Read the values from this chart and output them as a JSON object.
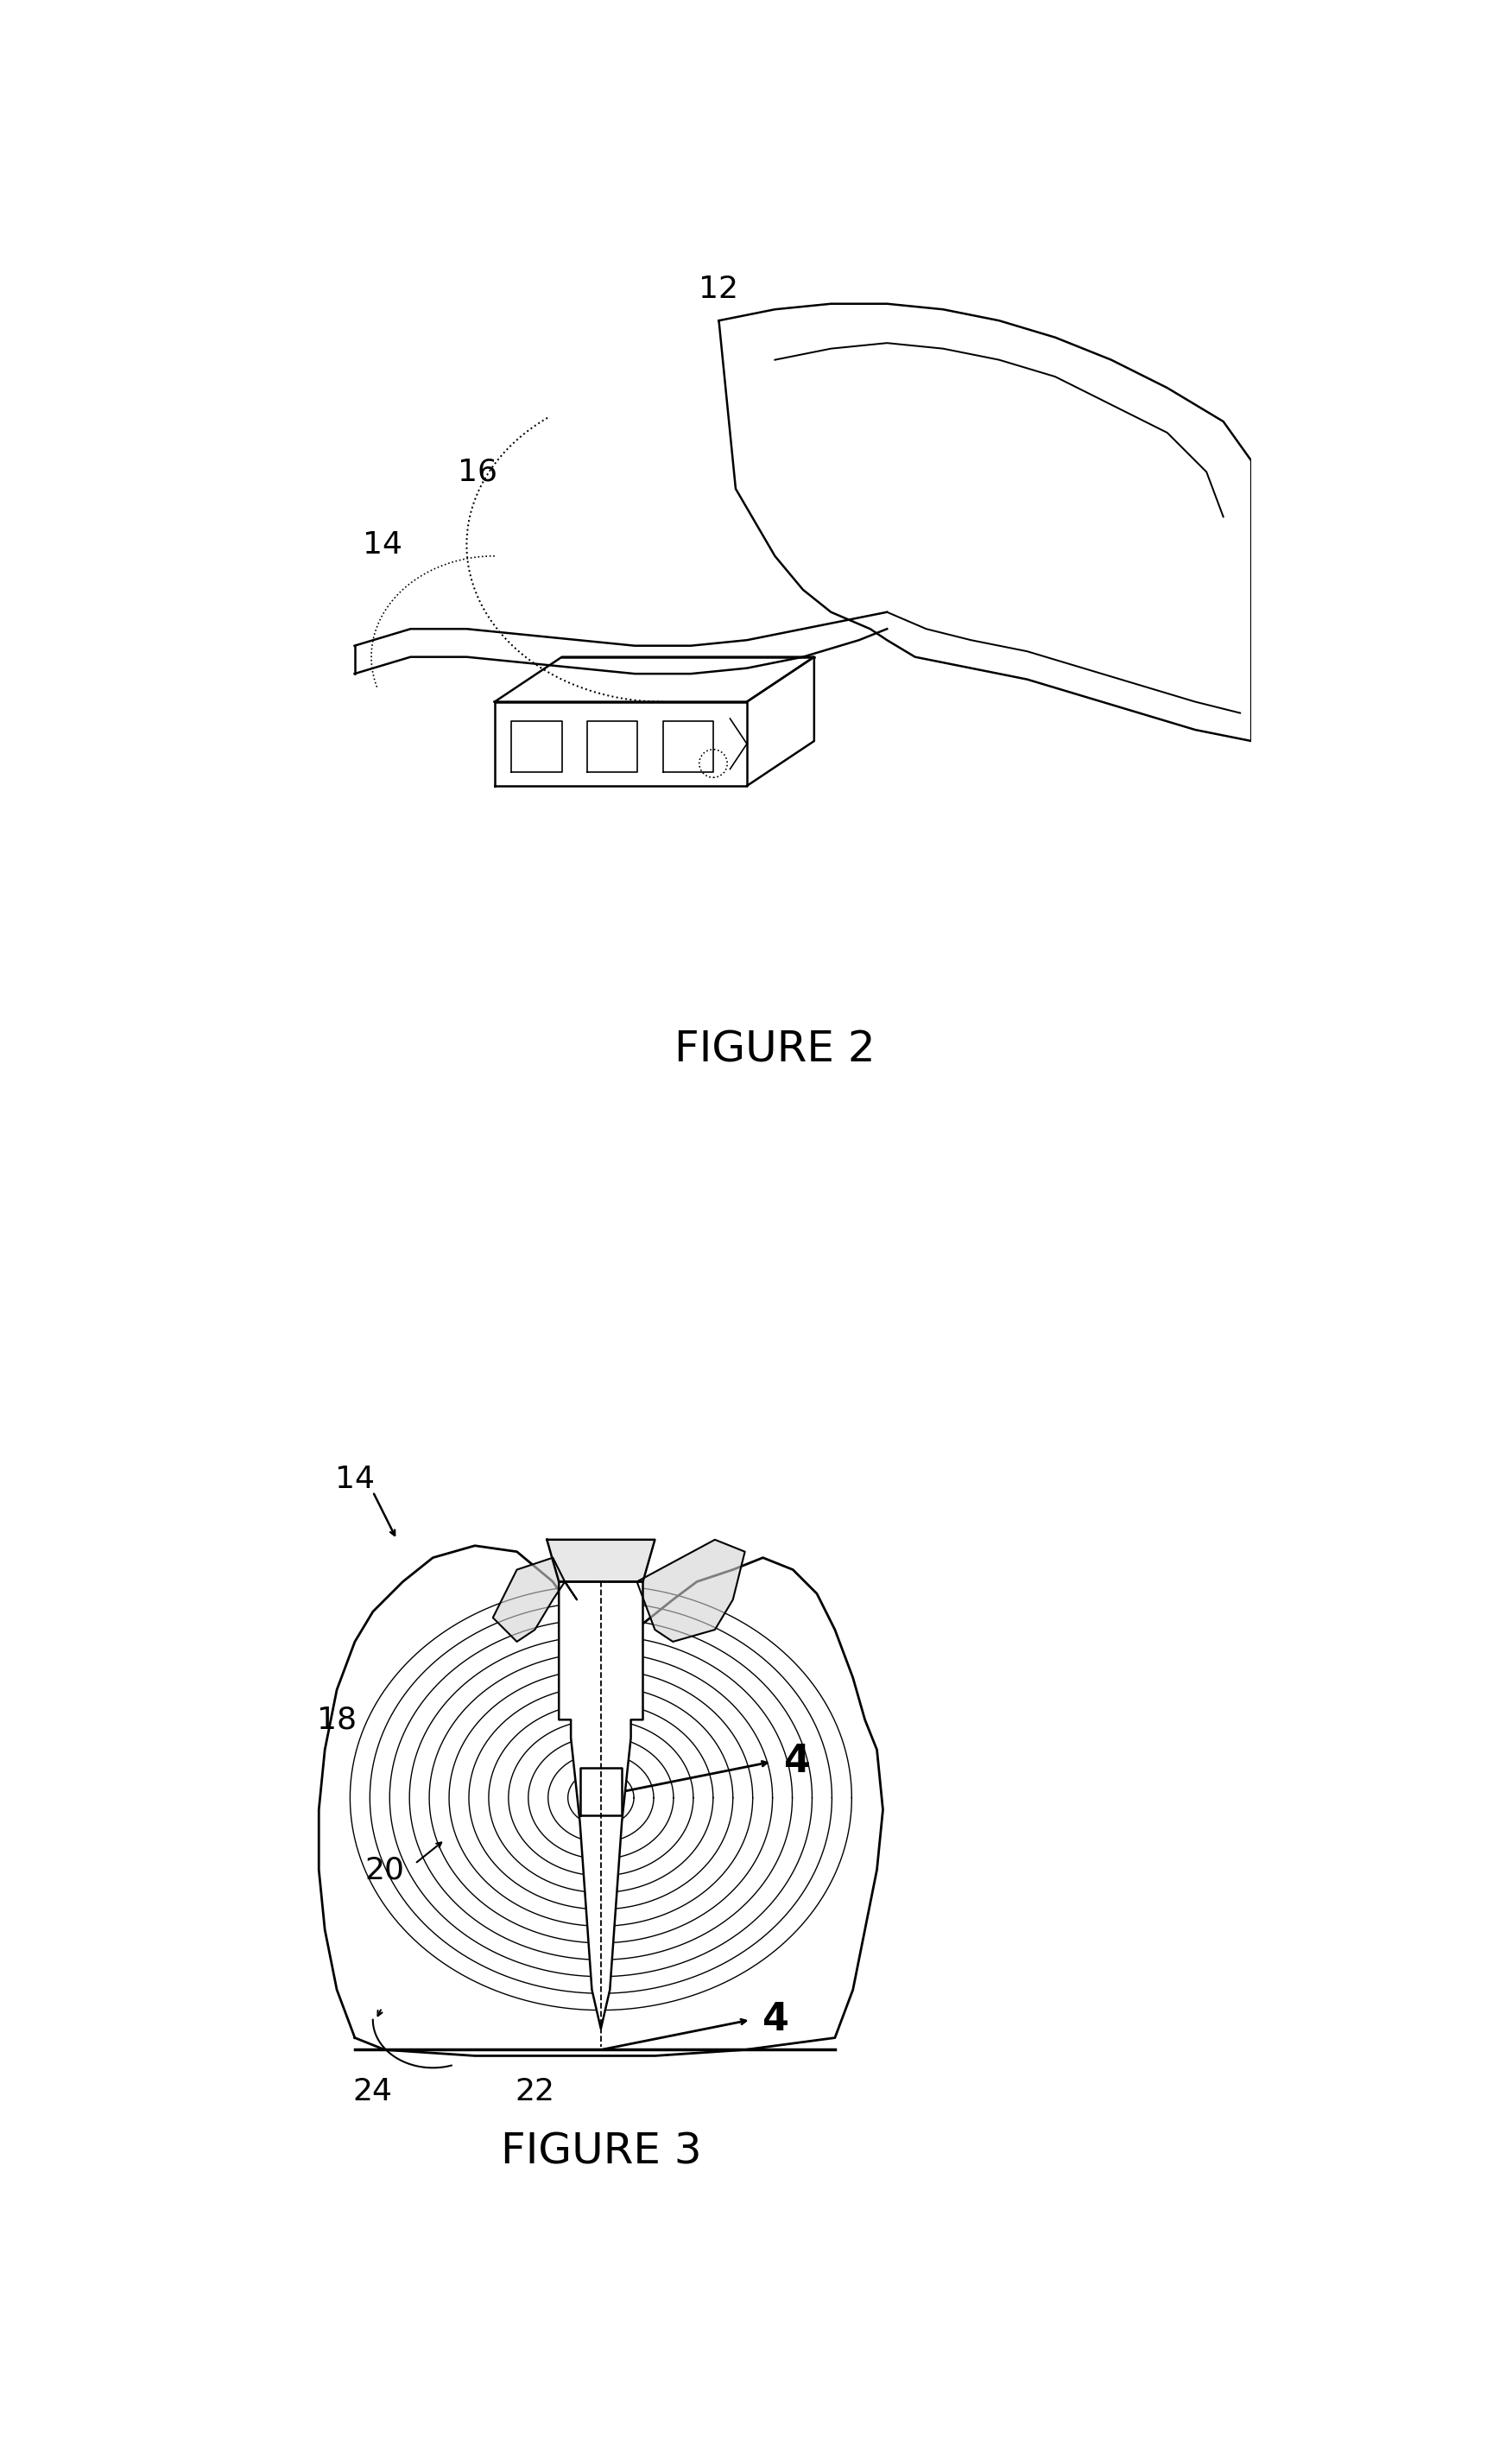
{
  "fig_width": 17.51,
  "fig_height": 28.23,
  "bg_color": "#ffffff",
  "line_color": "#000000",
  "fig2_title": "FIGURE 2",
  "fig3_title": "FIGURE 3",
  "title_fontsize": 36,
  "label_fontsize": 26
}
